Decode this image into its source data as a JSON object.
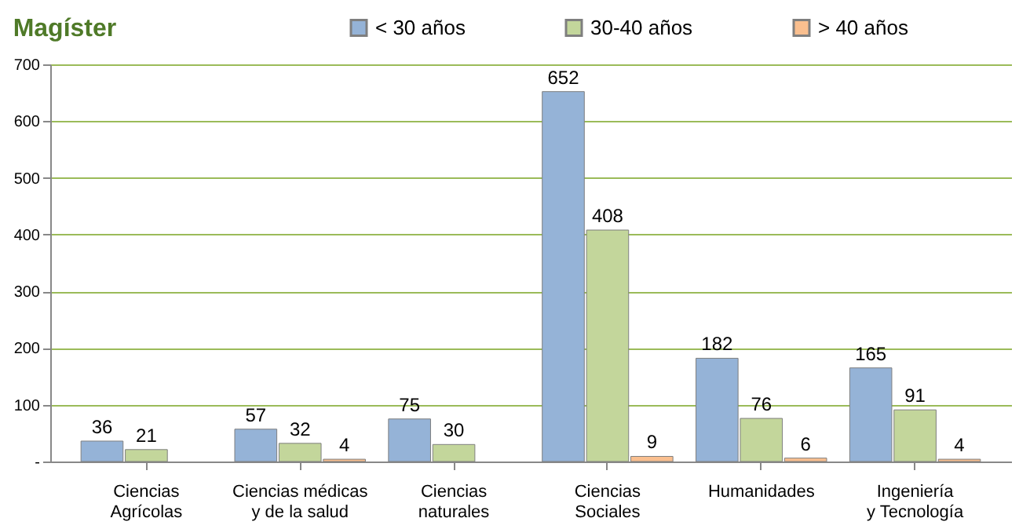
{
  "chart_data": {
    "type": "bar",
    "title": "Magíster",
    "categories": [
      "Ciencias Agrícolas",
      "Ciencias médicas y de la salud",
      "Ciencias naturales",
      "Ciencias Sociales",
      "Humanidades",
      "Ingeniería y Tecnología"
    ],
    "series": [
      {
        "name": "< 30 años",
        "color": "#95b3d7",
        "values": [
          36,
          57,
          75,
          652,
          182,
          165
        ]
      },
      {
        "name": "30-40 años",
        "color": "#c3d69b",
        "values": [
          21,
          32,
          30,
          408,
          76,
          91
        ]
      },
      {
        "name": "> 40 años",
        "color": "#fabf8f",
        "values": [
          null,
          4,
          null,
          9,
          6,
          4
        ]
      }
    ],
    "ylim": [
      0,
      700
    ],
    "yticks": [
      {
        "value": 0,
        "label": "-"
      },
      100,
      200,
      300,
      400,
      500,
      600,
      700
    ],
    "grid": "y",
    "legend": "top",
    "data_labels": true
  }
}
